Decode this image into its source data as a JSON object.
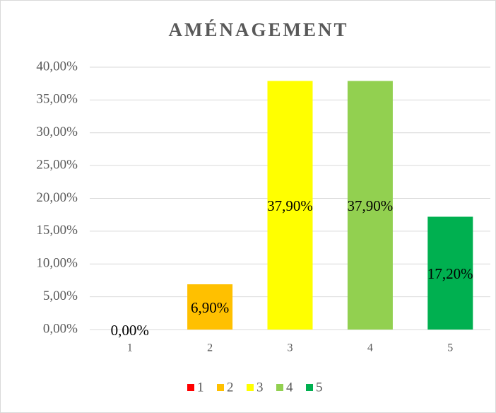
{
  "chart_data": {
    "type": "bar",
    "title": "AMÉNAGEMENT",
    "categories": [
      "1",
      "2",
      "3",
      "4",
      "5"
    ],
    "values": [
      0,
      6.9,
      37.9,
      37.9,
      17.2
    ],
    "value_labels": [
      "0,00%",
      "6,90%",
      "37,90%",
      "37,90%",
      "17,20%"
    ],
    "colors": [
      "#ff0000",
      "#ffc000",
      "#ffff00",
      "#92d050",
      "#00b050"
    ],
    "ylim": [
      0,
      40
    ],
    "yticks": [
      {
        "value": 0,
        "label": "0,00%"
      },
      {
        "value": 5,
        "label": "5,00%"
      },
      {
        "value": 10,
        "label": "10,00%"
      },
      {
        "value": 15,
        "label": "15,00%"
      },
      {
        "value": 20,
        "label": "20,00%"
      },
      {
        "value": 25,
        "label": "25,00%"
      },
      {
        "value": 30,
        "label": "30,00%"
      },
      {
        "value": 35,
        "label": "35,00%"
      },
      {
        "value": 40,
        "label": "40,00%"
      }
    ],
    "grid": true,
    "legend": "bottom"
  }
}
